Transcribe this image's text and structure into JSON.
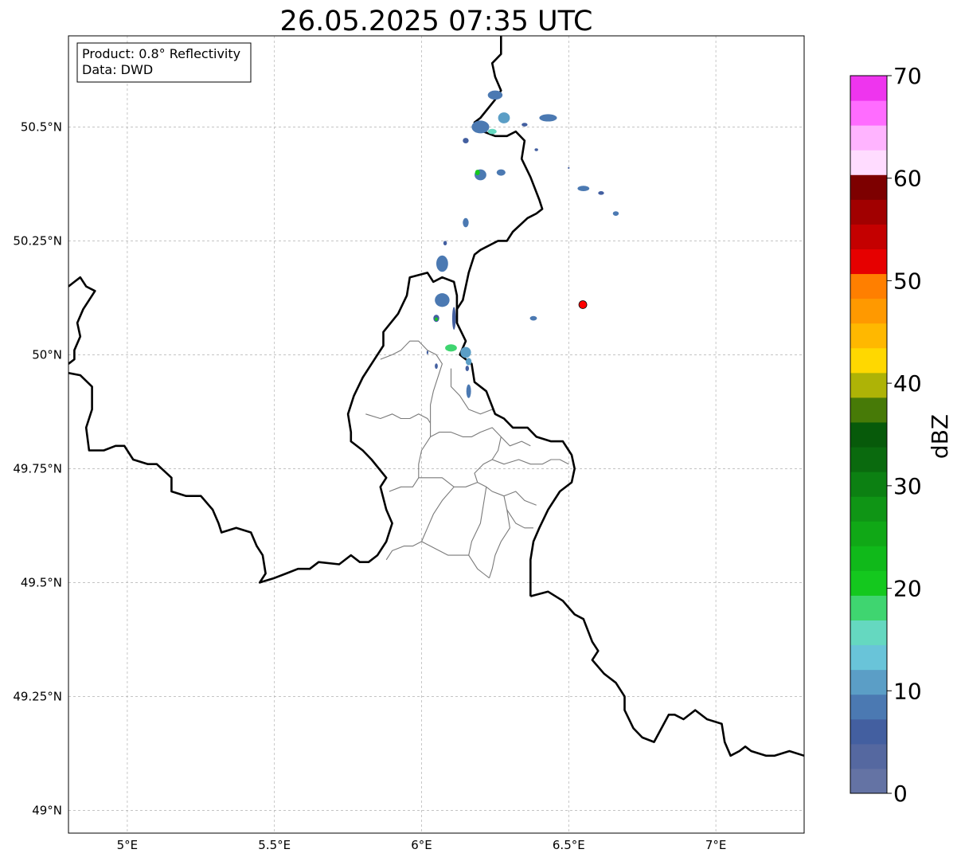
{
  "title": "26.05.2025 07:35 UTC",
  "info_box": {
    "product": "Product: 0.8° Reflectivity",
    "source": "Data: DWD"
  },
  "map": {
    "extent": {
      "lon_min": 4.8,
      "lon_max": 7.3,
      "lat_min": 48.95,
      "lat_max": 50.7
    },
    "lon_ticks": [
      {
        "value": 5.0,
        "label": "5°E"
      },
      {
        "value": 5.5,
        "label": "5.5°E"
      },
      {
        "value": 6.0,
        "label": "6°E"
      },
      {
        "value": 6.5,
        "label": "6.5°E"
      },
      {
        "value": 7.0,
        "label": "7°E"
      }
    ],
    "lat_ticks": [
      {
        "value": 50.5,
        "label": "50.5°N"
      },
      {
        "value": 50.25,
        "label": "50.25°N"
      },
      {
        "value": 50.0,
        "label": "50°N"
      },
      {
        "value": 49.75,
        "label": "49.75°N"
      },
      {
        "value": 49.5,
        "label": "49.5°N"
      },
      {
        "value": 49.25,
        "label": "49.25°N"
      },
      {
        "value": 49.0,
        "label": "49°N"
      }
    ],
    "radar_site": {
      "lon": 6.548,
      "lat": 50.11,
      "color": "#ff0000"
    },
    "grid": true
  },
  "colorbar": {
    "label": "dBZ",
    "min": 0,
    "max": 70,
    "step": 2.5,
    "ticks": [
      "0",
      "10",
      "20",
      "30",
      "40",
      "50",
      "60",
      "70"
    ],
    "colors": [
      "#6473a4",
      "#5568a0",
      "#435fa0",
      "#4b79b2",
      "#5b9ec6",
      "#69c4d9",
      "#65d8c0",
      "#3fd570",
      "#14c81e",
      "#10b91a",
      "#10a816",
      "#0f9515",
      "#0c8012",
      "#0a6a0e",
      "#075a0a",
      "#477a07",
      "#aeb306",
      "#ffd800",
      "#ffb800",
      "#ff9900",
      "#ff7f00",
      "#e60000",
      "#c40000",
      "#a10000",
      "#7d0000",
      "#ffdcff",
      "#ffb4ff",
      "#ff6cff",
      "#ee35ee"
    ]
  },
  "echoes": [
    {
      "lon": 6.25,
      "lat": 50.57,
      "rx": 0.025,
      "ry": 0.01,
      "dbz": 8
    },
    {
      "lon": 6.28,
      "lat": 50.52,
      "rx": 0.02,
      "ry": 0.012,
      "dbz": 12
    },
    {
      "lon": 6.2,
      "lat": 50.5,
      "rx": 0.03,
      "ry": 0.014,
      "dbz": 8
    },
    {
      "lon": 6.24,
      "lat": 50.49,
      "rx": 0.015,
      "ry": 0.006,
      "dbz": 15
    },
    {
      "lon": 6.43,
      "lat": 50.52,
      "rx": 0.03,
      "ry": 0.008,
      "dbz": 9
    },
    {
      "lon": 6.35,
      "lat": 50.505,
      "rx": 0.01,
      "ry": 0.004,
      "dbz": 6
    },
    {
      "lon": 6.15,
      "lat": 50.47,
      "rx": 0.01,
      "ry": 0.006,
      "dbz": 6
    },
    {
      "lon": 6.39,
      "lat": 50.45,
      "rx": 0.006,
      "ry": 0.003,
      "dbz": 6
    },
    {
      "lon": 6.2,
      "lat": 50.395,
      "rx": 0.02,
      "ry": 0.012,
      "dbz": 8
    },
    {
      "lon": 6.19,
      "lat": 50.4,
      "rx": 0.008,
      "ry": 0.006,
      "dbz": 22
    },
    {
      "lon": 6.27,
      "lat": 50.4,
      "rx": 0.015,
      "ry": 0.007,
      "dbz": 8
    },
    {
      "lon": 6.55,
      "lat": 50.365,
      "rx": 0.02,
      "ry": 0.006,
      "dbz": 8
    },
    {
      "lon": 6.61,
      "lat": 50.355,
      "rx": 0.01,
      "ry": 0.004,
      "dbz": 6
    },
    {
      "lon": 6.66,
      "lat": 50.31,
      "rx": 0.01,
      "ry": 0.005,
      "dbz": 9
    },
    {
      "lon": 6.15,
      "lat": 50.29,
      "rx": 0.01,
      "ry": 0.01,
      "dbz": 8
    },
    {
      "lon": 6.07,
      "lat": 50.2,
      "rx": 0.02,
      "ry": 0.018,
      "dbz": 9
    },
    {
      "lon": 6.08,
      "lat": 50.245,
      "rx": 0.006,
      "ry": 0.005,
      "dbz": 6
    },
    {
      "lon": 6.07,
      "lat": 50.12,
      "rx": 0.025,
      "ry": 0.015,
      "dbz": 8
    },
    {
      "lon": 6.05,
      "lat": 50.08,
      "rx": 0.01,
      "ry": 0.008,
      "dbz": 7
    },
    {
      "lon": 6.05,
      "lat": 50.078,
      "rx": 0.005,
      "ry": 0.004,
      "dbz": 22
    },
    {
      "lon": 6.11,
      "lat": 50.08,
      "rx": 0.006,
      "ry": 0.025,
      "dbz": 7
    },
    {
      "lon": 6.38,
      "lat": 50.08,
      "rx": 0.012,
      "ry": 0.005,
      "dbz": 8
    },
    {
      "lon": 6.1,
      "lat": 50.015,
      "rx": 0.02,
      "ry": 0.008,
      "dbz": 18
    },
    {
      "lon": 6.15,
      "lat": 50.005,
      "rx": 0.018,
      "ry": 0.012,
      "dbz": 10
    },
    {
      "lon": 6.16,
      "lat": 49.985,
      "rx": 0.01,
      "ry": 0.008,
      "dbz": 12
    },
    {
      "lon": 6.155,
      "lat": 49.97,
      "rx": 0.006,
      "ry": 0.006,
      "dbz": 7
    },
    {
      "lon": 6.05,
      "lat": 49.975,
      "rx": 0.005,
      "ry": 0.006,
      "dbz": 6
    },
    {
      "lon": 6.16,
      "lat": 49.92,
      "rx": 0.008,
      "ry": 0.015,
      "dbz": 8
    },
    {
      "lon": 6.02,
      "lat": 50.005,
      "rx": 0.003,
      "ry": 0.004,
      "dbz": 6
    },
    {
      "lon": 6.5,
      "lat": 50.41,
      "rx": 0.003,
      "ry": 0.002,
      "dbz": 6
    }
  ],
  "borders": {
    "country": [
      [
        [
          4.8,
          50.15
        ],
        [
          4.82,
          50.16
        ],
        [
          4.84,
          50.17
        ],
        [
          4.86,
          50.15
        ],
        [
          4.89,
          50.14
        ],
        [
          4.87,
          50.12
        ],
        [
          4.85,
          50.1
        ],
        [
          4.83,
          50.07
        ],
        [
          4.84,
          50.04
        ],
        [
          4.82,
          50.01
        ],
        [
          4.82,
          49.99
        ],
        [
          4.8,
          49.98
        ]
      ],
      [
        [
          4.8,
          49.96
        ],
        [
          4.84,
          49.955
        ],
        [
          4.88,
          49.93
        ],
        [
          4.88,
          49.88
        ],
        [
          4.86,
          49.84
        ],
        [
          4.87,
          49.79
        ],
        [
          4.92,
          49.79
        ],
        [
          4.96,
          49.8
        ],
        [
          4.99,
          49.8
        ],
        [
          5.02,
          49.77
        ],
        [
          5.07,
          49.76
        ],
        [
          5.1,
          49.76
        ],
        [
          5.15,
          49.73
        ],
        [
          5.15,
          49.7
        ],
        [
          5.2,
          49.69
        ],
        [
          5.25,
          49.69
        ],
        [
          5.29,
          49.66
        ],
        [
          5.31,
          49.63
        ],
        [
          5.32,
          49.61
        ],
        [
          5.37,
          49.62
        ],
        [
          5.42,
          49.61
        ],
        [
          5.44,
          49.58
        ],
        [
          5.46,
          49.56
        ],
        [
          5.47,
          49.52
        ],
        [
          5.45,
          49.5
        ],
        [
          5.5,
          49.51
        ],
        [
          5.54,
          49.52
        ],
        [
          5.58,
          49.53
        ],
        [
          5.62,
          49.53
        ],
        [
          5.65,
          49.545
        ],
        [
          5.72,
          49.54
        ],
        [
          5.76,
          49.56
        ],
        [
          5.79,
          49.545
        ],
        [
          5.82,
          49.545
        ],
        [
          5.85,
          49.56
        ],
        [
          5.88,
          49.59
        ],
        [
          5.9,
          49.63
        ],
        [
          5.88,
          49.66
        ],
        [
          5.86,
          49.71
        ],
        [
          5.88,
          49.73
        ],
        [
          5.83,
          49.77
        ],
        [
          5.8,
          49.79
        ],
        [
          5.76,
          49.81
        ],
        [
          5.76,
          49.83
        ],
        [
          5.75,
          49.87
        ],
        [
          5.77,
          49.91
        ],
        [
          5.8,
          49.95
        ],
        [
          5.84,
          49.99
        ],
        [
          5.87,
          50.02
        ],
        [
          5.87,
          50.05
        ],
        [
          5.92,
          50.09
        ],
        [
          5.95,
          50.13
        ],
        [
          5.96,
          50.17
        ],
        [
          6.02,
          50.18
        ],
        [
          6.04,
          50.16
        ],
        [
          6.07,
          50.17
        ],
        [
          6.11,
          50.16
        ],
        [
          6.12,
          50.13
        ],
        [
          6.12,
          50.07
        ],
        [
          6.15,
          50.03
        ],
        [
          6.13,
          50.0
        ],
        [
          6.17,
          49.98
        ],
        [
          6.18,
          49.94
        ],
        [
          6.22,
          49.92
        ],
        [
          6.25,
          49.87
        ],
        [
          6.28,
          49.86
        ],
        [
          6.31,
          49.84
        ],
        [
          6.36,
          49.84
        ],
        [
          6.39,
          49.82
        ],
        [
          6.44,
          49.81
        ],
        [
          6.48,
          49.81
        ],
        [
          6.5,
          49.79
        ],
        [
          6.51,
          49.78
        ],
        [
          6.52,
          49.75
        ],
        [
          6.51,
          49.72
        ],
        [
          6.47,
          49.7
        ],
        [
          6.43,
          49.66
        ],
        [
          6.4,
          49.62
        ],
        [
          6.38,
          49.59
        ],
        [
          6.37,
          49.55
        ],
        [
          6.37,
          49.47
        ]
      ],
      [
        [
          6.37,
          49.47
        ],
        [
          6.37,
          49.47
        ],
        [
          6.43,
          49.48
        ],
        [
          6.48,
          49.46
        ],
        [
          6.52,
          49.43
        ],
        [
          6.55,
          49.42
        ],
        [
          6.58,
          49.37
        ],
        [
          6.6,
          49.35
        ],
        [
          6.58,
          49.33
        ],
        [
          6.62,
          49.3
        ],
        [
          6.66,
          49.28
        ],
        [
          6.69,
          49.25
        ],
        [
          6.69,
          49.22
        ],
        [
          6.72,
          49.18
        ],
        [
          6.75,
          49.16
        ],
        [
          6.79,
          49.15
        ],
        [
          6.84,
          49.21
        ],
        [
          6.86,
          49.21
        ],
        [
          6.89,
          49.2
        ],
        [
          6.93,
          49.22
        ],
        [
          6.97,
          49.2
        ],
        [
          7.02,
          49.19
        ],
        [
          7.03,
          49.15
        ],
        [
          7.05,
          49.12
        ],
        [
          7.08,
          49.13
        ],
        [
          7.1,
          49.14
        ],
        [
          7.12,
          49.13
        ],
        [
          7.17,
          49.12
        ],
        [
          7.2,
          49.12
        ],
        [
          7.25,
          49.13
        ],
        [
          7.3,
          49.12
        ]
      ]
    ],
    "country_upper": [
      [
        [
          6.27,
          50.7
        ],
        [
          6.27,
          50.66
        ],
        [
          6.24,
          50.64
        ],
        [
          6.25,
          50.61
        ],
        [
          6.27,
          50.58
        ],
        [
          6.25,
          50.56
        ],
        [
          6.2,
          50.52
        ],
        [
          6.18,
          50.51
        ],
        [
          6.21,
          50.49
        ],
        [
          6.25,
          50.48
        ],
        [
          6.29,
          50.48
        ],
        [
          6.32,
          50.49
        ],
        [
          6.35,
          50.47
        ],
        [
          6.34,
          50.43
        ],
        [
          6.37,
          50.39
        ],
        [
          6.4,
          50.34
        ],
        [
          6.41,
          50.32
        ],
        [
          6.39,
          50.31
        ],
        [
          6.36,
          50.3
        ],
        [
          6.31,
          50.27
        ],
        [
          6.29,
          50.25
        ],
        [
          6.26,
          50.25
        ],
        [
          6.2,
          50.23
        ],
        [
          6.18,
          50.22
        ],
        [
          6.16,
          50.18
        ],
        [
          6.15,
          50.15
        ],
        [
          6.14,
          50.12
        ],
        [
          6.12,
          50.1
        ],
        [
          6.12,
          50.07
        ]
      ]
    ],
    "admin": [
      [
        [
          5.86,
          49.99
        ],
        [
          5.9,
          50.0
        ],
        [
          5.93,
          50.01
        ],
        [
          5.96,
          50.03
        ],
        [
          5.99,
          50.03
        ],
        [
          6.02,
          50.01
        ],
        [
          6.05,
          50.0
        ],
        [
          6.07,
          49.98
        ],
        [
          6.06,
          49.96
        ],
        [
          6.04,
          49.92
        ],
        [
          6.03,
          49.89
        ],
        [
          6.03,
          49.85
        ],
        [
          6.03,
          49.82
        ],
        [
          6.06,
          49.83
        ],
        [
          6.1,
          49.83
        ],
        [
          6.14,
          49.82
        ],
        [
          6.17,
          49.82
        ],
        [
          6.2,
          49.83
        ],
        [
          6.24,
          49.84
        ],
        [
          6.27,
          49.82
        ],
        [
          6.3,
          49.8
        ],
        [
          6.34,
          49.81
        ],
        [
          6.37,
          49.8
        ]
      ],
      [
        [
          6.1,
          49.97
        ],
        [
          6.1,
          49.93
        ],
        [
          6.13,
          49.91
        ],
        [
          6.16,
          49.88
        ],
        [
          6.2,
          49.87
        ],
        [
          6.24,
          49.88
        ],
        [
          6.25,
          49.87
        ]
      ],
      [
        [
          5.81,
          49.87
        ],
        [
          5.86,
          49.86
        ],
        [
          5.9,
          49.87
        ],
        [
          5.93,
          49.86
        ],
        [
          5.96,
          49.86
        ],
        [
          5.99,
          49.87
        ],
        [
          6.02,
          49.86
        ],
        [
          6.03,
          49.85
        ]
      ],
      [
        [
          6.03,
          49.82
        ],
        [
          6.0,
          49.79
        ],
        [
          5.99,
          49.76
        ],
        [
          5.99,
          49.73
        ],
        [
          5.97,
          49.71
        ],
        [
          5.93,
          49.71
        ],
        [
          5.89,
          49.7
        ]
      ],
      [
        [
          5.99,
          49.73
        ],
        [
          6.03,
          49.73
        ],
        [
          6.07,
          49.73
        ],
        [
          6.11,
          49.71
        ],
        [
          6.15,
          49.71
        ],
        [
          6.19,
          49.72
        ],
        [
          6.22,
          49.71
        ],
        [
          6.24,
          49.7
        ],
        [
          6.28,
          49.69
        ],
        [
          6.32,
          49.7
        ],
        [
          6.35,
          49.68
        ],
        [
          6.39,
          49.67
        ]
      ],
      [
        [
          6.19,
          49.72
        ],
        [
          6.18,
          49.74
        ],
        [
          6.21,
          49.76
        ],
        [
          6.24,
          49.77
        ],
        [
          6.28,
          49.76
        ],
        [
          6.33,
          49.77
        ],
        [
          6.37,
          49.76
        ],
        [
          6.41,
          49.76
        ],
        [
          6.44,
          49.77
        ],
        [
          6.47,
          49.77
        ],
        [
          6.5,
          49.76
        ]
      ],
      [
        [
          6.27,
          49.82
        ],
        [
          6.26,
          49.79
        ],
        [
          6.24,
          49.77
        ]
      ],
      [
        [
          6.11,
          49.71
        ],
        [
          6.07,
          49.68
        ],
        [
          6.04,
          49.65
        ],
        [
          6.02,
          49.62
        ],
        [
          6.0,
          49.59
        ],
        [
          5.97,
          49.58
        ],
        [
          5.94,
          49.58
        ],
        [
          5.9,
          49.57
        ],
        [
          5.88,
          49.55
        ]
      ],
      [
        [
          6.22,
          49.71
        ],
        [
          6.21,
          49.67
        ],
        [
          6.2,
          49.63
        ],
        [
          6.17,
          49.59
        ],
        [
          6.16,
          49.56
        ],
        [
          6.19,
          49.53
        ],
        [
          6.21,
          49.52
        ],
        [
          6.23,
          49.51
        ]
      ],
      [
        [
          6.0,
          49.59
        ],
        [
          6.03,
          49.58
        ],
        [
          6.06,
          49.57
        ],
        [
          6.09,
          49.56
        ],
        [
          6.12,
          49.56
        ],
        [
          6.16,
          49.56
        ]
      ],
      [
        [
          6.28,
          49.69
        ],
        [
          6.29,
          49.66
        ],
        [
          6.3,
          49.62
        ],
        [
          6.27,
          49.59
        ],
        [
          6.25,
          49.56
        ],
        [
          6.24,
          49.53
        ],
        [
          6.23,
          49.51
        ]
      ],
      [
        [
          6.29,
          49.66
        ],
        [
          6.32,
          49.63
        ],
        [
          6.35,
          49.62
        ],
        [
          6.38,
          49.62
        ]
      ]
    ]
  }
}
